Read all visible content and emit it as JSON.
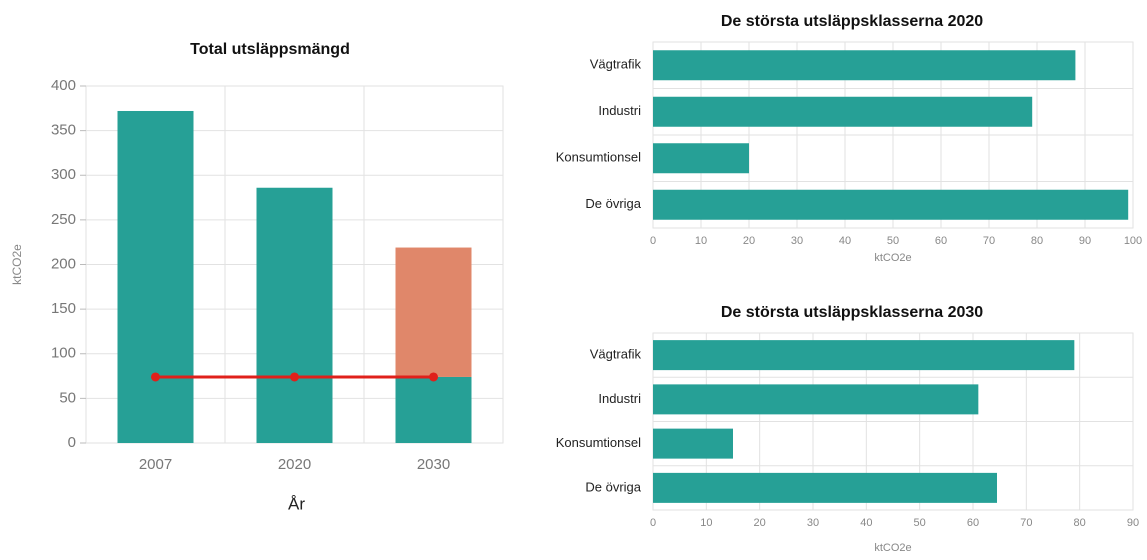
{
  "chart_data": [
    {
      "type": "bar",
      "stacked": true,
      "title": "Total utsläppsmängd",
      "xlabel": "År",
      "ylabel": "ktCO2e",
      "categories": [
        "2007",
        "2020",
        "2030"
      ],
      "series": [
        {
          "color": "#26a096",
          "values": [
            372,
            286,
            74
          ]
        },
        {
          "color": "#e0876a",
          "values": [
            null,
            null,
            145
          ]
        },
        {
          "kind": "line",
          "color": "#e0201b",
          "values": [
            74,
            74,
            74
          ]
        }
      ],
      "ylim": [
        0,
        400
      ],
      "yticks": [
        0,
        50,
        100,
        150,
        200,
        250,
        300,
        350,
        400
      ],
      "grid": true
    },
    {
      "type": "hbar",
      "title": "De största utsläppsklasserna 2020",
      "xlabel": "ktCO2e",
      "categories": [
        "Vägtrafik",
        "Industri",
        "Konsumtionsel",
        "De övriga"
      ],
      "values": [
        88,
        79,
        20,
        99
      ],
      "color": "#26a096",
      "xlim": [
        0,
        100
      ],
      "xticks": [
        0,
        10,
        20,
        30,
        40,
        50,
        60,
        70,
        80,
        90,
        100
      ],
      "grid": true
    },
    {
      "type": "hbar",
      "title": "De största utsläppsklasserna 2030",
      "xlabel": "ktCO2e",
      "categories": [
        "Vägtrafik",
        "Industri",
        "Konsumtionsel",
        "De övriga"
      ],
      "values": [
        79,
        61,
        15,
        64.5
      ],
      "color": "#26a096",
      "xlim": [
        0,
        90
      ],
      "xticks": [
        0,
        10,
        20,
        30,
        40,
        50,
        60,
        70,
        80,
        90
      ],
      "grid": true
    }
  ]
}
